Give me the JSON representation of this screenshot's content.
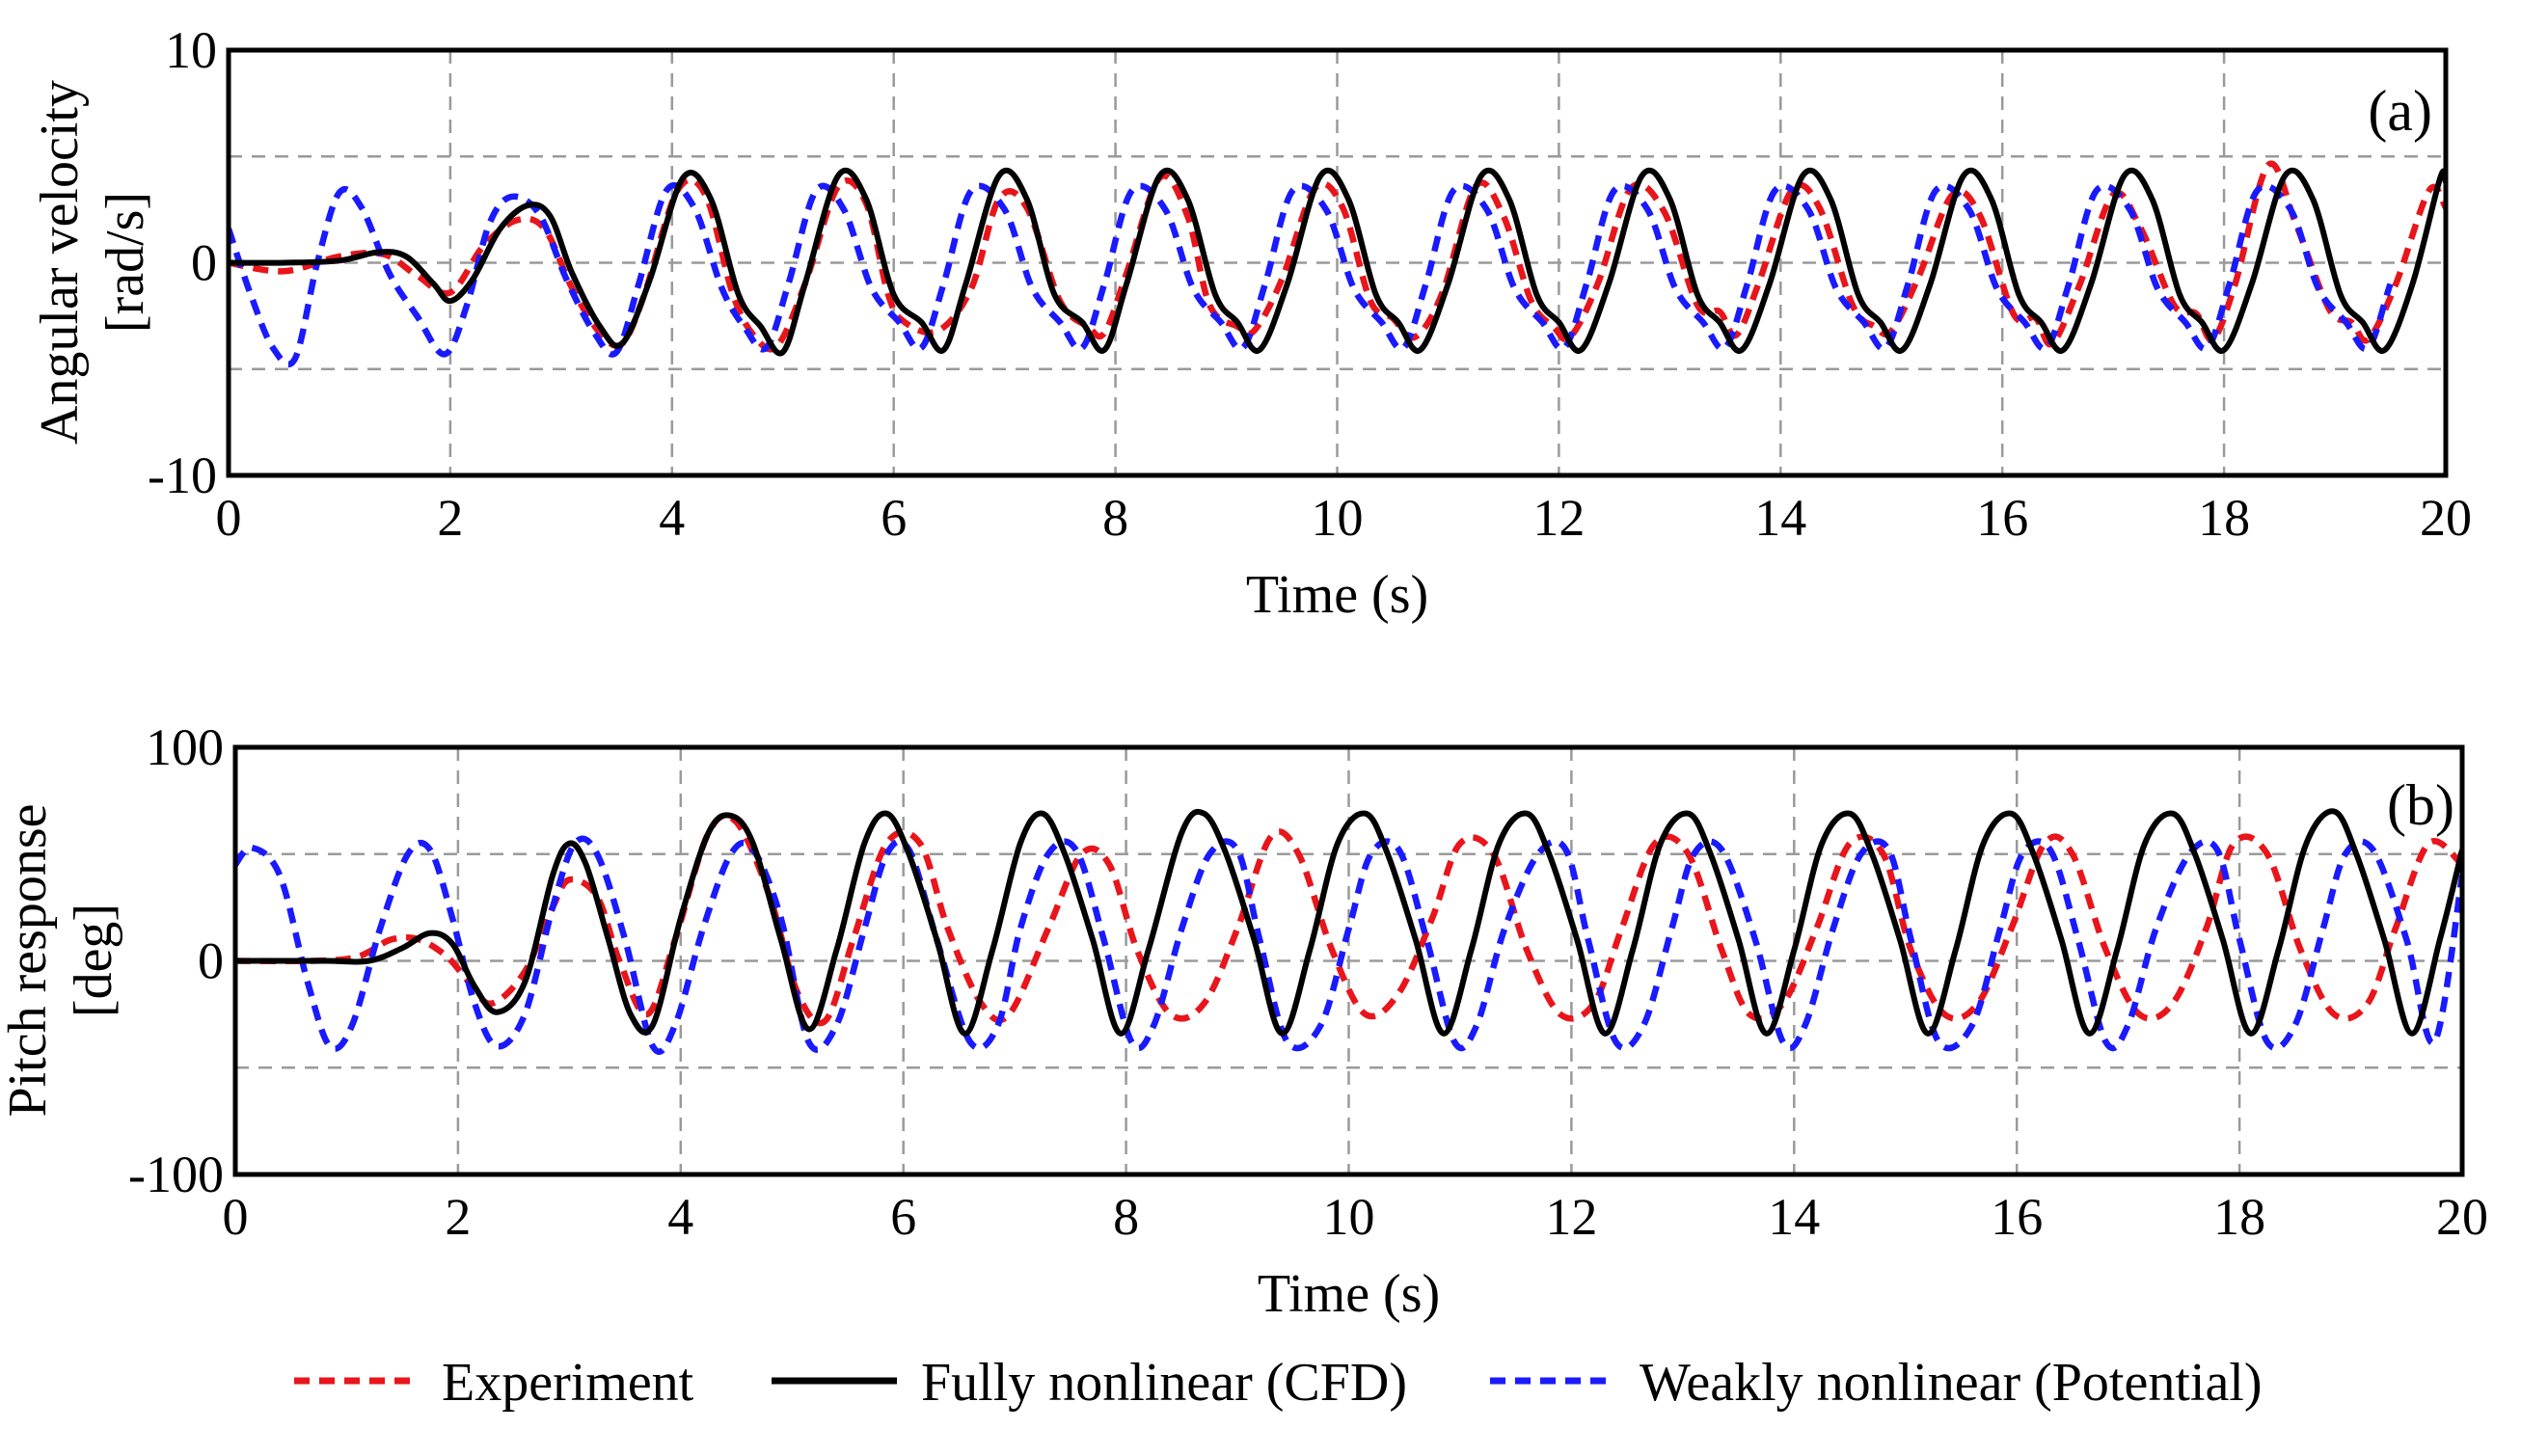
{
  "chart_data": [
    {
      "type": "line",
      "panel": "(a)",
      "xlabel": "Time (s)",
      "ylabel_line1": "Angular velocity",
      "ylabel_line2": "[rad/s]",
      "xlim": [
        0,
        20
      ],
      "ylim": [
        -10,
        10
      ],
      "xticks": [
        0,
        2,
        4,
        6,
        8,
        10,
        12,
        14,
        16,
        18,
        20
      ],
      "yticks": [
        -10,
        0,
        10
      ],
      "grid": true,
      "series": [
        {
          "name": "Experiment",
          "color": "#e8151b",
          "style": "dotted",
          "t": [
            0,
            0.5,
            1.0,
            1.4,
            1.7,
            2.0,
            2.3,
            2.6,
            2.85,
            3.1,
            3.35,
            3.55,
            3.75,
            4.05,
            4.3,
            4.55,
            4.75,
            4.95,
            5.2,
            5.5,
            5.75,
            5.95,
            6.1,
            6.4,
            6.7,
            6.95,
            7.2,
            7.5,
            7.75,
            7.9,
            8.1,
            8.4,
            8.65,
            8.85,
            9.1,
            9.25,
            9.5,
            9.8,
            10.05,
            10.3,
            10.5,
            10.7,
            10.95,
            11.25,
            11.5,
            11.75,
            11.95,
            12.1,
            12.35,
            12.65,
            12.95,
            13.25,
            13.45,
            13.6,
            13.8,
            14.1,
            14.35,
            14.65,
            14.85,
            15.0,
            15.25,
            15.55,
            15.8,
            16.1,
            16.3,
            16.45,
            16.7,
            17.0,
            17.25,
            17.55,
            17.75,
            17.9,
            18.1,
            18.4,
            18.65,
            18.95,
            19.15,
            19.3,
            19.55,
            19.85,
            20.0
          ],
          "v": [
            0,
            -0.4,
            0.3,
            0.4,
            -0.6,
            -1.4,
            0.8,
            2.0,
            1.6,
            -1.2,
            -3.3,
            -3.8,
            -1.5,
            3.4,
            3.2,
            -1.5,
            -3.5,
            -3.9,
            -1.0,
            3.6,
            2.8,
            -1.5,
            -2.8,
            -3.2,
            -1.2,
            3.0,
            2.6,
            -1.8,
            -3.0,
            -3.3,
            -0.5,
            4.0,
            2.2,
            -2.0,
            -3.0,
            -3.2,
            -0.8,
            3.5,
            2.6,
            -1.8,
            -2.6,
            -3.5,
            -1.4,
            3.6,
            2.2,
            -1.8,
            -3.0,
            -3.5,
            -1.0,
            3.5,
            2.4,
            -2.0,
            -2.3,
            -3.4,
            -1.0,
            3.4,
            2.6,
            -2.0,
            -3.0,
            -3.2,
            -0.6,
            3.2,
            2.2,
            -2.4,
            -2.6,
            -3.8,
            -1.0,
            3.2,
            1.6,
            -2.0,
            -2.4,
            -3.6,
            -1.0,
            4.6,
            1.8,
            -2.2,
            -2.8,
            -3.6,
            -1.0,
            3.4,
            2.6
          ]
        },
        {
          "name": "Fully nonlinear (CFD)",
          "color": "#000000",
          "style": "solid",
          "t": [
            0,
            0.5,
            1.0,
            1.35,
            1.6,
            1.85,
            2.0,
            2.2,
            2.45,
            2.7,
            2.9,
            3.1,
            3.35,
            3.55,
            3.8,
            4.1,
            4.35,
            4.6,
            4.8,
            5.0,
            5.2,
            5.5,
            5.75,
            6.0,
            6.25,
            6.45,
            6.65,
            6.95,
            7.2,
            7.45,
            7.7,
            7.9,
            8.1,
            8.4,
            8.65,
            8.9,
            9.1,
            9.3,
            9.55,
            9.85,
            10.1,
            10.35,
            10.55,
            10.75,
            11.0,
            11.3,
            11.55,
            11.8,
            12.0,
            12.2,
            12.45,
            12.75,
            13.0,
            13.25,
            13.45,
            13.65,
            13.9,
            14.2,
            14.45,
            14.7,
            14.9,
            15.1,
            15.35,
            15.65,
            15.9,
            16.15,
            16.35,
            16.55,
            16.8,
            17.1,
            17.35,
            17.6,
            17.8,
            18.0,
            18.25,
            18.55,
            18.8,
            19.05,
            19.25,
            19.45,
            19.7,
            19.95,
            20.0
          ],
          "v": [
            0,
            0,
            0.1,
            0.5,
            0.3,
            -1.0,
            -1.8,
            -0.8,
            1.6,
            2.7,
            2.2,
            -0.5,
            -3.0,
            -3.8,
            -0.8,
            4.0,
            3.0,
            -1.5,
            -3.0,
            -4.2,
            -1.0,
            4.1,
            3.0,
            -1.5,
            -2.8,
            -4.1,
            -1.0,
            4.1,
            3.0,
            -1.5,
            -2.8,
            -4.1,
            -1.0,
            4.1,
            3.0,
            -1.5,
            -2.8,
            -4.1,
            -1.0,
            4.1,
            3.0,
            -1.5,
            -2.8,
            -4.1,
            -1.0,
            4.1,
            3.0,
            -1.5,
            -2.8,
            -4.1,
            -1.0,
            4.1,
            3.0,
            -1.5,
            -2.8,
            -4.1,
            -1.0,
            4.1,
            3.0,
            -1.5,
            -2.8,
            -4.1,
            -1.0,
            4.1,
            3.0,
            -1.5,
            -2.8,
            -4.1,
            -1.0,
            4.1,
            3.0,
            -1.5,
            -2.8,
            -4.1,
            -1.0,
            4.1,
            3.0,
            -1.5,
            -2.8,
            -4.1,
            -1.0,
            4.0,
            3.8
          ]
        },
        {
          "name": "Weakly nonlinear (Potential)",
          "color": "#1a1aff",
          "style": "dotted",
          "t": [
            0,
            0.2,
            0.4,
            0.6,
            0.8,
            1.0,
            1.2,
            1.45,
            1.7,
            1.95,
            2.15,
            2.35,
            2.55,
            2.8,
            3.05,
            3.3,
            3.5,
            3.7,
            3.95,
            4.2,
            4.45,
            4.65,
            4.85,
            5.05,
            5.3,
            5.55,
            5.8,
            6.05,
            6.25,
            6.45,
            6.7,
            7.0,
            7.25,
            7.5,
            7.7,
            7.9,
            8.15,
            8.45,
            8.7,
            8.95,
            9.15,
            9.35,
            9.6,
            9.9,
            10.15,
            10.4,
            10.6,
            10.8,
            11.05,
            11.35,
            11.6,
            11.85,
            12.05,
            12.25,
            12.5,
            12.8,
            13.05,
            13.3,
            13.5,
            13.7,
            13.95,
            14.25,
            14.5,
            14.75,
            14.95,
            15.15,
            15.4,
            15.7,
            15.95,
            16.2,
            16.4,
            16.6,
            16.85,
            17.15,
            17.4,
            17.65,
            17.85,
            18.05,
            18.3,
            18.6,
            18.85,
            19.1,
            19.3,
            19.5,
            19.75,
            20.0
          ],
          "v": [
            1.6,
            -1.5,
            -4.0,
            -4.5,
            0,
            3.3,
            2.6,
            -0.5,
            -2.5,
            -4.3,
            -2.0,
            1.8,
            3.1,
            2.3,
            -0.8,
            -3.3,
            -4.2,
            -1.0,
            3.4,
            2.6,
            -1.2,
            -3.0,
            -4.0,
            -1.0,
            3.4,
            2.5,
            -1.2,
            -2.8,
            -4.0,
            -1.0,
            3.4,
            2.5,
            -1.2,
            -2.8,
            -4.0,
            -1.0,
            3.4,
            2.5,
            -1.2,
            -2.8,
            -4.0,
            -1.0,
            3.4,
            2.5,
            -1.2,
            -2.8,
            -4.0,
            -1.0,
            3.4,
            2.5,
            -1.2,
            -2.8,
            -4.0,
            -1.0,
            3.4,
            2.5,
            -1.2,
            -2.8,
            -4.0,
            -1.0,
            3.4,
            2.5,
            -1.2,
            -2.8,
            -4.0,
            -1.0,
            3.4,
            2.5,
            -1.2,
            -2.8,
            -4.0,
            -1.0,
            3.4,
            2.5,
            -1.2,
            -2.8,
            -4.0,
            -1.0,
            3.4,
            2.5,
            -1.2,
            -2.8,
            -4.0,
            -1.0,
            3.0
          ]
        }
      ]
    },
    {
      "type": "line",
      "panel": "(b)",
      "xlabel": "Time (s)",
      "ylabel_line1": "Pitch response",
      "ylabel_line2": "[deg]",
      "xlim": [
        0,
        20
      ],
      "ylim": [
        -100,
        100
      ],
      "xticks": [
        0,
        2,
        4,
        6,
        8,
        10,
        12,
        14,
        16,
        18,
        20
      ],
      "yticks": [
        -100,
        0,
        100
      ],
      "grid": true,
      "series": [
        {
          "name": "Experiment",
          "color": "#e8151b",
          "style": "dotted",
          "t": [
            0,
            0.7,
            1.1,
            1.4,
            1.65,
            1.9,
            2.1,
            2.3,
            2.6,
            2.85,
            3.0,
            3.25,
            3.45,
            3.7,
            3.95,
            4.25,
            4.5,
            4.8,
            5.05,
            5.3,
            5.55,
            5.85,
            6.15,
            6.4,
            6.7,
            6.95,
            7.3,
            7.6,
            7.85,
            8.1,
            8.4,
            8.7,
            9.0,
            9.3,
            9.55,
            9.85,
            10.15,
            10.45,
            10.75,
            11.0,
            11.3,
            11.6,
            11.9,
            12.2,
            12.45,
            12.75,
            13.05,
            13.35,
            13.6,
            13.9,
            14.2,
            14.5,
            14.8,
            15.05,
            15.35,
            15.65,
            15.95,
            16.25,
            16.5,
            16.8,
            17.1,
            17.4,
            17.7,
            17.95,
            18.25,
            18.55,
            18.85,
            19.15,
            19.4,
            19.7,
            20.0
          ],
          "v": [
            0,
            0,
            2,
            10,
            10,
            2,
            -10,
            -20,
            -5,
            25,
            38,
            30,
            0,
            -25,
            10,
            60,
            65,
            30,
            -15,
            -28,
            10,
            55,
            55,
            15,
            -20,
            -25,
            15,
            50,
            45,
            5,
            -25,
            -20,
            15,
            58,
            50,
            5,
            -25,
            -15,
            20,
            55,
            50,
            5,
            -25,
            -20,
            15,
            55,
            50,
            5,
            -25,
            -20,
            15,
            55,
            50,
            5,
            -25,
            -20,
            15,
            55,
            50,
            5,
            -25,
            -20,
            15,
            55,
            50,
            5,
            -25,
            -20,
            15,
            55,
            45
          ]
        },
        {
          "name": "Fully nonlinear (CFD)",
          "color": "#000000",
          "style": "solid",
          "t": [
            0,
            0.8,
            1.2,
            1.5,
            1.75,
            1.95,
            2.15,
            2.35,
            2.6,
            2.85,
            3.0,
            3.15,
            3.35,
            3.55,
            3.75,
            4.0,
            4.25,
            4.45,
            4.65,
            4.9,
            5.15,
            5.4,
            5.65,
            5.85,
            6.05,
            6.3,
            6.55,
            6.8,
            7.05,
            7.25,
            7.45,
            7.7,
            7.95,
            8.2,
            8.5,
            8.7,
            8.9,
            9.15,
            9.4,
            9.65,
            9.9,
            10.15,
            10.35,
            10.6,
            10.85,
            11.1,
            11.35,
            11.6,
            11.8,
            12.05,
            12.3,
            12.55,
            12.8,
            13.05,
            13.25,
            13.5,
            13.75,
            14.0,
            14.25,
            14.5,
            14.7,
            14.95,
            15.2,
            15.45,
            15.7,
            15.95,
            16.15,
            16.4,
            16.65,
            16.9,
            17.15,
            17.4,
            17.6,
            17.85,
            18.1,
            18.35,
            18.6,
            18.85,
            19.05,
            19.3,
            19.55,
            19.8,
            20.0
          ],
          "v": [
            0,
            0,
            0,
            6,
            13,
            8,
            -12,
            -24,
            -10,
            40,
            55,
            45,
            10,
            -25,
            -30,
            20,
            60,
            68,
            55,
            10,
            -32,
            5,
            55,
            69,
            50,
            10,
            -34,
            5,
            55,
            69,
            50,
            10,
            -34,
            5,
            60,
            69,
            50,
            10,
            -34,
            5,
            55,
            69,
            50,
            10,
            -34,
            5,
            55,
            69,
            50,
            10,
            -34,
            5,
            55,
            69,
            50,
            10,
            -34,
            5,
            55,
            69,
            50,
            10,
            -34,
            5,
            55,
            69,
            50,
            10,
            -34,
            5,
            55,
            69,
            50,
            10,
            -34,
            5,
            55,
            70,
            50,
            10,
            -34,
            10,
            52
          ]
        },
        {
          "name": "Weakly nonlinear (Potential)",
          "color": "#1a1aff",
          "style": "dotted",
          "t": [
            0,
            0.15,
            0.4,
            0.65,
            0.85,
            1.05,
            1.3,
            1.55,
            1.75,
            1.95,
            2.15,
            2.35,
            2.6,
            2.85,
            3.05,
            3.25,
            3.5,
            3.75,
            3.95,
            4.2,
            4.45,
            4.65,
            4.9,
            5.15,
            5.4,
            5.65,
            5.85,
            6.05,
            6.3,
            6.6,
            6.85,
            7.05,
            7.3,
            7.55,
            7.8,
            8.05,
            8.25,
            8.5,
            8.75,
            9.0,
            9.2,
            9.45,
            9.75,
            10.0,
            10.2,
            10.45,
            10.7,
            10.95,
            11.15,
            11.4,
            11.7,
            11.95,
            12.15,
            12.4,
            12.65,
            12.9,
            13.1,
            13.35,
            13.65,
            13.9,
            14.1,
            14.35,
            14.6,
            14.85,
            15.05,
            15.3,
            15.6,
            15.85,
            16.05,
            16.3,
            16.55,
            16.8,
            17.0,
            17.25,
            17.55,
            17.8,
            18.0,
            18.25,
            18.5,
            18.75,
            18.95,
            19.2,
            19.5,
            19.75,
            20.0
          ],
          "v": [
            45,
            53,
            40,
            -10,
            -40,
            -30,
            15,
            50,
            52,
            20,
            -20,
            -40,
            -25,
            25,
            55,
            50,
            10,
            -40,
            -30,
            15,
            50,
            52,
            20,
            -38,
            -30,
            15,
            50,
            52,
            10,
            -38,
            -30,
            15,
            50,
            52,
            10,
            -38,
            -30,
            15,
            50,
            52,
            10,
            -38,
            -30,
            15,
            50,
            52,
            10,
            -38,
            -30,
            15,
            50,
            52,
            10,
            -38,
            -30,
            15,
            50,
            52,
            10,
            -38,
            -30,
            15,
            50,
            52,
            10,
            -38,
            -30,
            15,
            50,
            52,
            10,
            -38,
            -30,
            15,
            50,
            52,
            10,
            -38,
            -30,
            15,
            50,
            52,
            10,
            -38,
            40
          ]
        }
      ]
    }
  ],
  "legend": {
    "items": [
      {
        "label": "Experiment",
        "color": "#e8151b",
        "style": "dotted"
      },
      {
        "label": "Fully nonlinear (CFD)",
        "color": "#000000",
        "style": "solid"
      },
      {
        "label": "Weakly nonlinear (Potential)",
        "color": "#1a1aff",
        "style": "dotted"
      }
    ]
  }
}
